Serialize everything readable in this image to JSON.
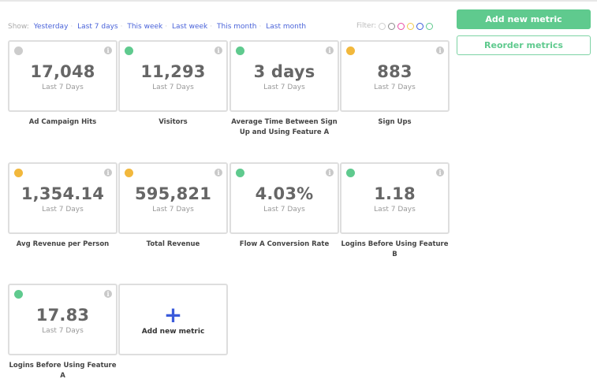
{
  "show": {
    "label": "Show:",
    "options": [
      "Yesterday",
      "Last 7 days",
      "This week",
      "Last week",
      "This month",
      "Last month"
    ]
  },
  "filter": {
    "label": "Filter:",
    "colors": [
      "#cfcfcf",
      "#8a8a8a",
      "#e94ba4",
      "#f2c94c",
      "#3b5bdb",
      "#5fca8e"
    ]
  },
  "buttons": {
    "add_metric": "Add new metric",
    "reorder": "Reorder metrics"
  },
  "metrics": [
    {
      "value": "17,048",
      "period": "Last 7 Days",
      "label": "Ad Campaign Hits",
      "status_color": "#cccccc"
    },
    {
      "value": "11,293",
      "period": "Last 7 Days",
      "label": "Visitors",
      "status_color": "#5fca8e"
    },
    {
      "value": "3 days",
      "period": "Last 7 Days",
      "label": "Average Time Between Sign Up and Using Feature A",
      "status_color": "#5fca8e"
    },
    {
      "value": "883",
      "period": "Last 7 Days",
      "label": "Sign Ups",
      "status_color": "#f2b83c"
    },
    {
      "value": "1,354.14",
      "period": "Last 7 Days",
      "label": "Avg Revenue per Person",
      "status_color": "#f2b83c"
    },
    {
      "value": "595,821",
      "period": "Last 7 Days",
      "label": "Total Revenue",
      "status_color": "#f2b83c"
    },
    {
      "value": "4.03%",
      "period": "Last 7 Days",
      "label": "Flow A Conversion Rate",
      "status_color": "#5fca8e"
    },
    {
      "value": "1.18",
      "period": "Last 7 Days",
      "label": "Logins Before Using Feature B",
      "status_color": "#5fca8e"
    },
    {
      "value": "17.83",
      "period": "Last 7 Days",
      "label": "Logins Before Using Feature A",
      "status_color": "#5fca8e"
    }
  ],
  "add_card": {
    "plus": "+",
    "label": "Add new metric"
  },
  "info_glyph": "i"
}
